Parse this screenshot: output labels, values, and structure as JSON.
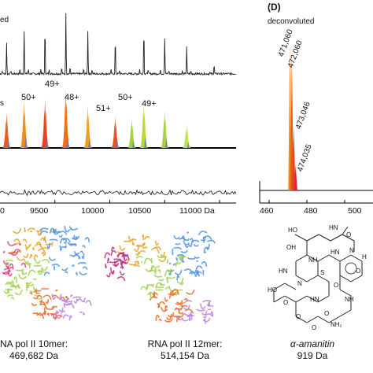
{
  "left_figure": {
    "top_label_fragment": "ed",
    "series_label_fragment": "s",
    "charge_states": [
      "49+",
      "50+",
      "48+",
      "51+",
      "50+",
      "49+"
    ],
    "x_tick_labels": [
      "9500",
      "10000",
      "10500",
      "11000 Da"
    ],
    "x_tick_fragment": "0"
  },
  "panel_d": {
    "panel_label": "(D)",
    "subtitle": "deconvoluted",
    "peak_labels": [
      "471,060",
      "472,060",
      "473,046",
      "474,035"
    ],
    "x_tick_labels": [
      "460",
      "480",
      "500"
    ]
  },
  "structures": [
    {
      "caption_line1": "NA pol II 10mer:",
      "caption_line2": "469,682 Da"
    },
    {
      "caption_line1": "RNA pol II 12mer:",
      "caption_line2": "514,154 Da"
    }
  ],
  "chemical": {
    "name": "α-amanitin",
    "mass": "919 Da",
    "atom_labels": [
      "HO",
      "HN",
      "OH",
      "O",
      "NH",
      "HN",
      "HN",
      "HO",
      "S",
      "N",
      "O",
      "HN",
      "O",
      "O",
      "NH",
      "O",
      "O",
      "N",
      "O",
      "NH₂",
      "H"
    ]
  },
  "chart_data": [
    {
      "type": "line",
      "title": "",
      "xlabel": "",
      "ylabel": "",
      "x_ticks": [
        9500,
        10000,
        10500,
        11000
      ],
      "x_unit": "Da",
      "xlim": [
        9000,
        11150
      ],
      "traces": [
        "raw spectrum",
        "charge-state series",
        "residual"
      ],
      "charge_state_peaks": [
        {
          "label": "49+",
          "x": 9600
        },
        {
          "label": "50+",
          "x": 9410
        },
        {
          "label": "48+",
          "x": 9800
        },
        {
          "label": "51+",
          "x": 10050
        },
        {
          "label": "50+",
          "x": 10310
        },
        {
          "label": "49+",
          "x": 10500
        }
      ]
    },
    {
      "type": "line",
      "title": "(D) deconvoluted",
      "xlabel": "",
      "ylabel": "",
      "x_ticks": [
        460,
        480,
        500
      ],
      "xlim": [
        455,
        515
      ],
      "peaks": [
        {
          "label": "471,060",
          "x": 471.06,
          "y": 1.0
        },
        {
          "label": "472,060",
          "x": 472.06,
          "y": 0.95
        },
        {
          "label": "473,046",
          "x": 473.05,
          "y": 0.45
        },
        {
          "label": "474,035",
          "x": 474.04,
          "y": 0.18
        }
      ]
    }
  ]
}
